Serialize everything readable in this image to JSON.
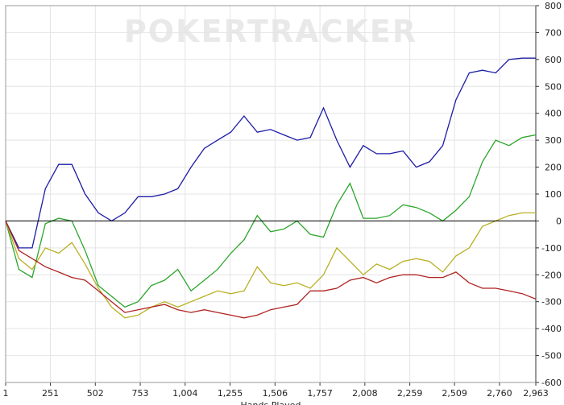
{
  "chart_data": {
    "type": "line",
    "watermark": "POKERTRACKER",
    "x_label": "Hands Played",
    "x": [
      1,
      75,
      149,
      223,
      297,
      371,
      445,
      519,
      593,
      667,
      741,
      815,
      889,
      963,
      1037,
      1111,
      1185,
      1259,
      1333,
      1407,
      1481,
      1555,
      1629,
      1703,
      1777,
      1851,
      1925,
      1999,
      2073,
      2147,
      2221,
      2295,
      2369,
      2443,
      2517,
      2591,
      2665,
      2739,
      2813,
      2887,
      2963
    ],
    "series": [
      {
        "color": "#1c1ca6",
        "values": [
          0,
          -100,
          -100,
          120,
          210,
          210,
          100,
          30,
          0,
          30,
          90,
          90,
          100,
          120,
          200,
          270,
          300,
          330,
          390,
          330,
          340,
          320,
          300,
          310,
          420,
          300,
          200,
          280,
          250,
          250,
          260,
          200,
          220,
          280,
          450,
          550,
          560,
          550,
          600,
          605,
          605
        ]
      },
      {
        "color": "#2ca52c",
        "values": [
          0,
          -180,
          -210,
          -10,
          10,
          0,
          -110,
          -240,
          -280,
          -320,
          -300,
          -240,
          -220,
          -180,
          -260,
          -220,
          -180,
          -120,
          -70,
          20,
          -40,
          -30,
          0,
          -50,
          -60,
          60,
          140,
          10,
          10,
          20,
          60,
          50,
          30,
          0,
          40,
          90,
          220,
          300,
          280,
          310,
          320
        ]
      },
      {
        "color": "#b8b024",
        "values": [
          0,
          -140,
          -180,
          -100,
          -120,
          -80,
          -160,
          -250,
          -320,
          -360,
          -350,
          -320,
          -300,
          -320,
          -300,
          -280,
          -260,
          -270,
          -260,
          -170,
          -230,
          -240,
          -230,
          -250,
          -200,
          -100,
          -150,
          -200,
          -160,
          -180,
          -150,
          -140,
          -150,
          -190,
          -130,
          -100,
          -20,
          0,
          20,
          30,
          30
        ]
      },
      {
        "color": "#b02222",
        "values": [
          0,
          -110,
          -140,
          -170,
          -190,
          -210,
          -220,
          -260,
          -300,
          -340,
          -330,
          -320,
          -310,
          -330,
          -340,
          -330,
          -340,
          -350,
          -360,
          -350,
          -330,
          -320,
          -310,
          -260,
          -260,
          -250,
          -220,
          -210,
          -230,
          -210,
          -200,
          -200,
          -210,
          -210,
          -190,
          -230,
          -250,
          -250,
          -260,
          -270,
          -290
        ]
      }
    ],
    "xlim": [
      1,
      2963
    ],
    "xticks": [
      1,
      {
        "value": 251,
        "label": "251"
      },
      502,
      753,
      {
        "value": 1004,
        "label": "1,004"
      },
      {
        "value": 1255,
        "label": "1,255"
      },
      {
        "value": 1506,
        "label": "1,506"
      },
      {
        "value": 1757,
        "label": "1,757"
      },
      {
        "value": 2008,
        "label": "2,008"
      },
      {
        "value": 2259,
        "label": "2,259"
      },
      {
        "value": 2509,
        "label": "2,509"
      },
      {
        "value": 2760,
        "label": "2,760"
      },
      {
        "value": 2963,
        "label": "2,963"
      }
    ],
    "ylim": [
      -600,
      800
    ],
    "yticks": [
      -600,
      -500,
      -400,
      -300,
      -200,
      -100,
      0,
      100,
      200,
      300,
      400,
      500,
      600,
      700,
      800
    ],
    "grid": true,
    "y_axis_side": "right"
  }
}
